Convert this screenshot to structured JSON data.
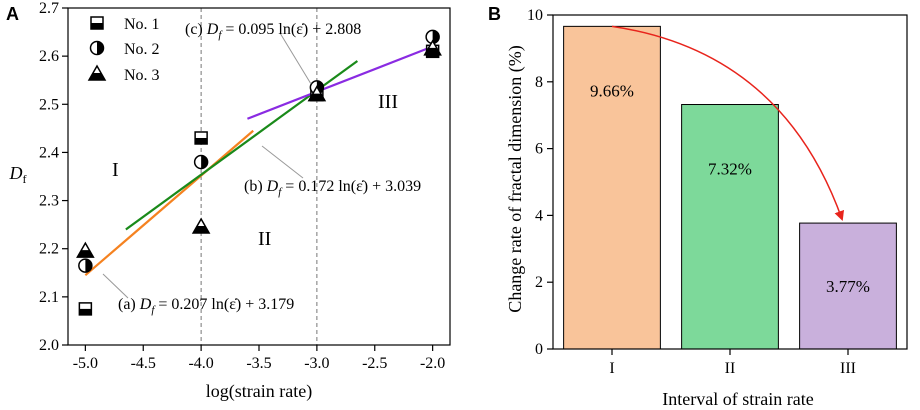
{
  "chart_data": [
    {
      "panel": "A",
      "type": "scatter",
      "xlabel": "log(strain rate)",
      "ylabel_main": "D",
      "ylabel_sub": "f",
      "xlim": [
        -5.15,
        -1.85
      ],
      "ylim": [
        2.0,
        2.7
      ],
      "xticks": [
        -5.0,
        -4.5,
        -4.0,
        -3.5,
        -3.0,
        -2.5,
        -2.0
      ],
      "xtick_labels": [
        "-5.0",
        "-4.5",
        "-4.0",
        "-3.5",
        "-3.0",
        "-2.5",
        "-2.0"
      ],
      "yticks": [
        2.0,
        2.1,
        2.2,
        2.3,
        2.4,
        2.5,
        2.6,
        2.7
      ],
      "ytick_labels": [
        "2.0",
        "2.1",
        "2.2",
        "2.3",
        "2.4",
        "2.5",
        "2.6",
        "2.7"
      ],
      "series": [
        {
          "name": "No. 1",
          "marker": "square-half",
          "points": [
            [
              -5.0,
              2.075
            ],
            [
              -4.0,
              2.43
            ],
            [
              -3.0,
              2.52
            ],
            [
              -2.0,
              2.61
            ]
          ]
        },
        {
          "name": "No. 2",
          "marker": "circle-half",
          "points": [
            [
              -5.0,
              2.165
            ],
            [
              -4.0,
              2.38
            ],
            [
              -3.0,
              2.535
            ],
            [
              -2.0,
              2.64
            ]
          ]
        },
        {
          "name": "No. 3",
          "marker": "triangle-half",
          "points": [
            [
              -5.0,
              2.195
            ],
            [
              -4.0,
              2.245
            ],
            [
              -3.0,
              2.52
            ],
            [
              -2.0,
              2.615
            ]
          ]
        }
      ],
      "fit_lines": [
        {
          "id": "a",
          "color": "#f58220",
          "x": [
            -5.0,
            -3.55
          ],
          "y": [
            2.145,
            2.445
          ],
          "label": "(a) D_f = 0.207 ln(ε̇) + 3.179"
        },
        {
          "id": "b",
          "color": "#1a8a1a",
          "x": [
            -4.65,
            -2.65
          ],
          "y": [
            2.24,
            2.59
          ],
          "label": "(b) D_f = 0.172 ln(ε̇) + 3.039"
        },
        {
          "id": "c",
          "color": "#8a2be2",
          "x": [
            -3.6,
            -2.0
          ],
          "y": [
            2.47,
            2.62
          ],
          "label": "(c) D_f = 0.095 ln(ε̇) + 2.808"
        }
      ],
      "dashed_verticals": [
        -4.0,
        -3.0
      ],
      "regions": [
        "I",
        "II",
        "III"
      ],
      "equations": [
        {
          "prefix": "(a)",
          "body": "0.207 ln(ε̇) + 3.179"
        },
        {
          "prefix": "(b)",
          "body": "0.172 ln(ε̇) + 3.039"
        },
        {
          "prefix": "(c)",
          "body": "0.095 ln(ε̇) + 2.808"
        }
      ]
    },
    {
      "panel": "B",
      "type": "bar",
      "xlabel": "Interval of strain rate",
      "ylabel": "Change rate of fractal dimension (%)",
      "ylim": [
        0,
        10
      ],
      "yticks": [
        0,
        2,
        4,
        6,
        8,
        10
      ],
      "ytick_labels": [
        "0",
        "2",
        "4",
        "6",
        "8",
        "10"
      ],
      "categories": [
        "I",
        "II",
        "III"
      ],
      "values": [
        9.66,
        7.32,
        3.77
      ],
      "value_labels": [
        "9.66%",
        "7.32%",
        "3.77%"
      ],
      "colors": [
        "#f9c49a",
        "#7dd99a",
        "#c9b0dc"
      ],
      "arrow_color": "#e8241c"
    }
  ]
}
